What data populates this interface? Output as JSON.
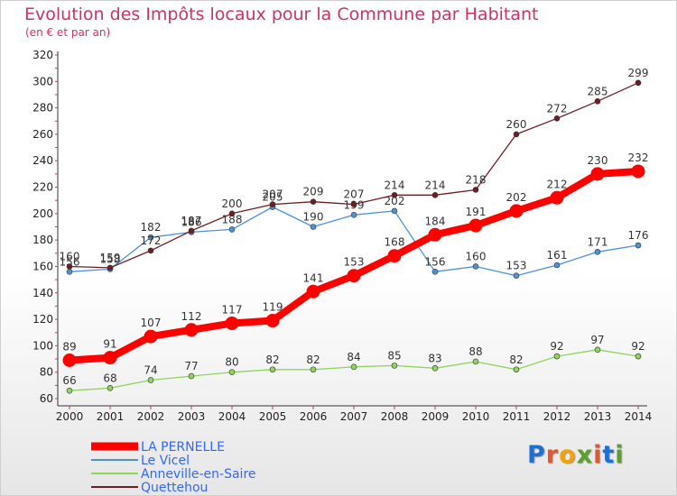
{
  "title": "Evolution des Impôts locaux pour la Commune par Habitant",
  "subtitle": "(en € et par an)",
  "logo": {
    "letters": [
      "P",
      "r",
      "o",
      "x",
      "i",
      "t",
      "i"
    ],
    "colors": [
      "#1e6fd0",
      "#e4572e",
      "#f4a300",
      "#5aa02c",
      "#e4572e",
      "#1e6fd0",
      "#5aa02c"
    ]
  },
  "chart_data": {
    "type": "line",
    "title": "Evolution des Impôts locaux pour la Commune par Habitant",
    "subtitle": "(en € et par an)",
    "x": [
      2000,
      2001,
      2002,
      2003,
      2004,
      2005,
      2006,
      2007,
      2008,
      2009,
      2010,
      2011,
      2012,
      2013,
      2014
    ],
    "ylim": [
      60,
      320
    ],
    "yticks": [
      60,
      80,
      100,
      120,
      140,
      160,
      180,
      200,
      220,
      240,
      260,
      280,
      300,
      320
    ],
    "grid": false,
    "legend_position": "bottom-left",
    "series": [
      {
        "name": "Le Vicel",
        "color": "#4f92d4",
        "values": [
          156,
          158,
          182,
          186,
          188,
          205,
          190,
          199,
          202,
          156,
          160,
          153,
          161,
          171,
          176
        ]
      },
      {
        "name": "Anneville-en-Saire",
        "color": "#8fd45c",
        "values": [
          66,
          68,
          74,
          77,
          80,
          82,
          82,
          84,
          85,
          83,
          88,
          82,
          92,
          97,
          92
        ]
      },
      {
        "name": "Quettehou",
        "color": "#6b1f24",
        "values": [
          160,
          159,
          172,
          187,
          200,
          207,
          209,
          207,
          214,
          214,
          218,
          260,
          272,
          285,
          299
        ]
      },
      {
        "name": "LA PERNELLE",
        "color": "#ff0000",
        "values": [
          89,
          91,
          107,
          112,
          117,
          119,
          141,
          153,
          168,
          184,
          191,
          202,
          212,
          230,
          232
        ]
      }
    ],
    "legend_order": [
      "LA PERNELLE",
      "Le Vicel",
      "Anneville-en-Saire",
      "Quettehou"
    ]
  }
}
